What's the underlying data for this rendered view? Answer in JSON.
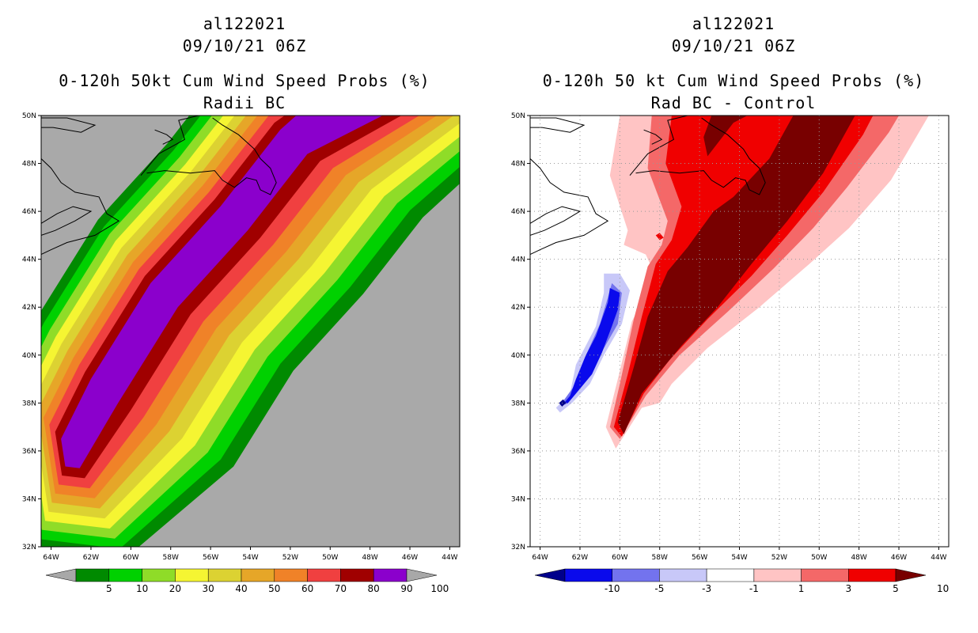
{
  "chart_data": [
    {
      "type": "heatmap",
      "title_lines": [
        "al122021",
        "09/10/21 06Z",
        "0-120h 50kt Cum Wind Speed Probs (%)",
        "Radii BC"
      ],
      "x_ticks": [
        "64W",
        "62W",
        "60W",
        "58W",
        "56W",
        "54W",
        "52W",
        "50W",
        "48W",
        "46W",
        "44W"
      ],
      "y_ticks": [
        "32N",
        "34N",
        "36N",
        "38N",
        "40N",
        "42N",
        "44N",
        "46N",
        "48N",
        "50N"
      ],
      "xlim_deg_west": [
        64.5,
        43.5
      ],
      "ylim_deg_north": [
        32,
        50
      ],
      "background": "#a9a9a9",
      "contour_levels": [
        5,
        10,
        20,
        30,
        40,
        50,
        60,
        70,
        80,
        90,
        100
      ],
      "colorbar": {
        "labels": [
          "5",
          "10",
          "20",
          "30",
          "40",
          "50",
          "60",
          "70",
          "80",
          "90",
          "100"
        ],
        "colors": [
          "#a8a8a8",
          "#008a00",
          "#00d100",
          "#8fdc28",
          "#f5f532",
          "#dcd232",
          "#e6a628",
          "#f08228",
          "#f04040",
          "#a00000",
          "#8b00cc",
          "#a8a8a8"
        ]
      },
      "field_description": "Swath of high wind-speed probability along a track from about 36N 63W to 49N 52W",
      "track_core": [
        {
          "lon": -63.0,
          "lat": 36.0
        },
        {
          "lon": -61.5,
          "lat": 38.5
        },
        {
          "lon": -58.5,
          "lat": 42.5
        },
        {
          "lon": -55.0,
          "lat": 45.7
        },
        {
          "lon": -52.0,
          "lat": 48.9
        }
      ]
    },
    {
      "type": "heatmap",
      "title_lines": [
        "al122021",
        "09/10/21 06Z",
        "0-120h 50 kt Cum Wind Speed Probs (%)",
        "Rad BC - Control"
      ],
      "x_ticks": [
        "64W",
        "62W",
        "60W",
        "58W",
        "56W",
        "54W",
        "52W",
        "50W",
        "48W",
        "46W",
        "44W"
      ],
      "y_ticks": [
        "32N",
        "34N",
        "36N",
        "38N",
        "40N",
        "42N",
        "44N",
        "46N",
        "48N",
        "50N"
      ],
      "xlim_deg_west": [
        64.5,
        43.5
      ],
      "ylim_deg_north": [
        32,
        50
      ],
      "background": "#ffffff",
      "contour_levels": [
        -10,
        -5,
        -3,
        -1,
        1,
        3,
        5,
        10
      ],
      "colorbar": {
        "labels": [
          "-10",
          "-5",
          "-3",
          "-1",
          "1",
          "3",
          "5",
          "10"
        ],
        "colors": [
          "#00008b",
          "#0a0aec",
          "#7373ee",
          "#c8c8f8",
          "#ffffff",
          "#ffc4c4",
          "#f46868",
          "#f00000",
          "#780000"
        ]
      },
      "field_description": "Negative differences west of the track (about 38N 63W to 43N 60W); positive differences along and east of the track (about 36N 60W to 50N 46W)"
    }
  ]
}
